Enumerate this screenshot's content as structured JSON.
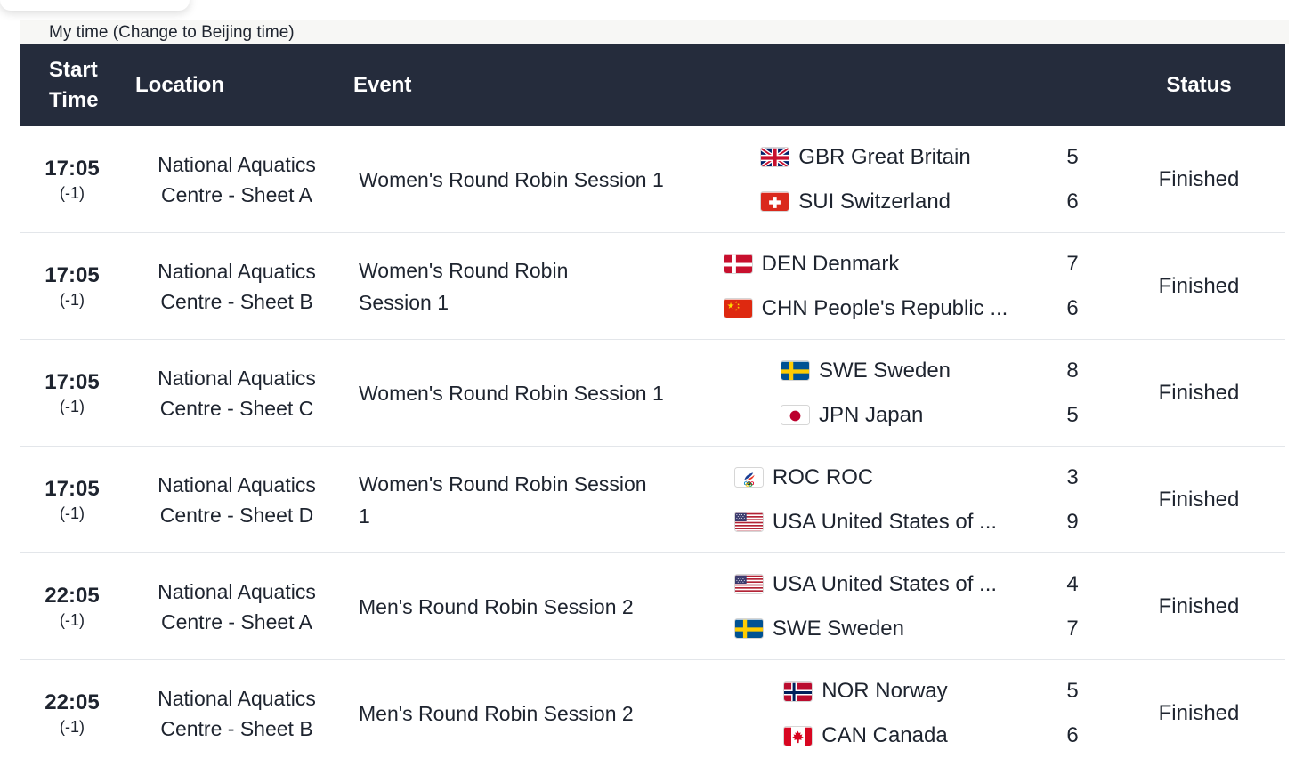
{
  "timebar": {
    "prefix": "My time ",
    "change_link": "(Change to Beijing time)"
  },
  "table": {
    "headers": {
      "start_time": "Start Time",
      "location": "Location",
      "event": "Event",
      "status": "Status"
    },
    "rows": [
      {
        "time": "17:05",
        "offset": "(-1)",
        "location_lines": [
          "National Aquatics",
          "Centre - Sheet A"
        ],
        "event_lines": [
          "Women's Round Robin Session 1"
        ],
        "teams": [
          {
            "flag": "gbr",
            "name": "GBR Great Britain",
            "score": "5"
          },
          {
            "flag": "sui",
            "name": "SUI Switzerland",
            "score": "6"
          }
        ],
        "status": "Finished"
      },
      {
        "time": "17:05",
        "offset": "(-1)",
        "location_lines": [
          "National Aquatics",
          "Centre - Sheet B"
        ],
        "event_lines": [
          "Women's Round Robin",
          "Session 1"
        ],
        "teams": [
          {
            "flag": "den",
            "name": "DEN Denmark",
            "score": "7"
          },
          {
            "flag": "chn",
            "name": "CHN People's Republic ...",
            "score": "6"
          }
        ],
        "status": "Finished"
      },
      {
        "time": "17:05",
        "offset": "(-1)",
        "location_lines": [
          "National Aquatics",
          "Centre - Sheet C"
        ],
        "event_lines": [
          "Women's Round Robin Session 1"
        ],
        "teams": [
          {
            "flag": "swe",
            "name": "SWE Sweden",
            "score": "8"
          },
          {
            "flag": "jpn",
            "name": "JPN Japan",
            "score": "5"
          }
        ],
        "status": "Finished"
      },
      {
        "time": "17:05",
        "offset": "(-1)",
        "location_lines": [
          "National Aquatics",
          "Centre - Sheet D"
        ],
        "event_lines": [
          "Women's Round Robin Session",
          "1"
        ],
        "teams": [
          {
            "flag": "roc",
            "name": "ROC ROC",
            "score": "3"
          },
          {
            "flag": "usa",
            "name": "USA United States of ...",
            "score": "9"
          }
        ],
        "status": "Finished"
      },
      {
        "time": "22:05",
        "offset": "(-1)",
        "location_lines": [
          "National Aquatics",
          "Centre - Sheet A"
        ],
        "event_lines": [
          "Men's Round Robin Session 2"
        ],
        "teams": [
          {
            "flag": "usa",
            "name": "USA United States of ...",
            "score": "4"
          },
          {
            "flag": "swe",
            "name": "SWE Sweden",
            "score": "7"
          }
        ],
        "status": "Finished"
      },
      {
        "time": "22:05",
        "offset": "(-1)",
        "location_lines": [
          "National Aquatics",
          "Centre - Sheet B"
        ],
        "event_lines": [
          "Men's Round Robin Session 2"
        ],
        "teams": [
          {
            "flag": "nor",
            "name": "NOR Norway",
            "score": "5"
          },
          {
            "flag": "can",
            "name": "CAN Canada",
            "score": "6"
          }
        ],
        "status": "Finished"
      }
    ]
  },
  "colors": {
    "header_bg": "#252c3c",
    "header_text": "#ffffff",
    "body_text": "#1e242f",
    "separator": "#e3e6ea",
    "timebar_bg": "#f7f7f5"
  }
}
